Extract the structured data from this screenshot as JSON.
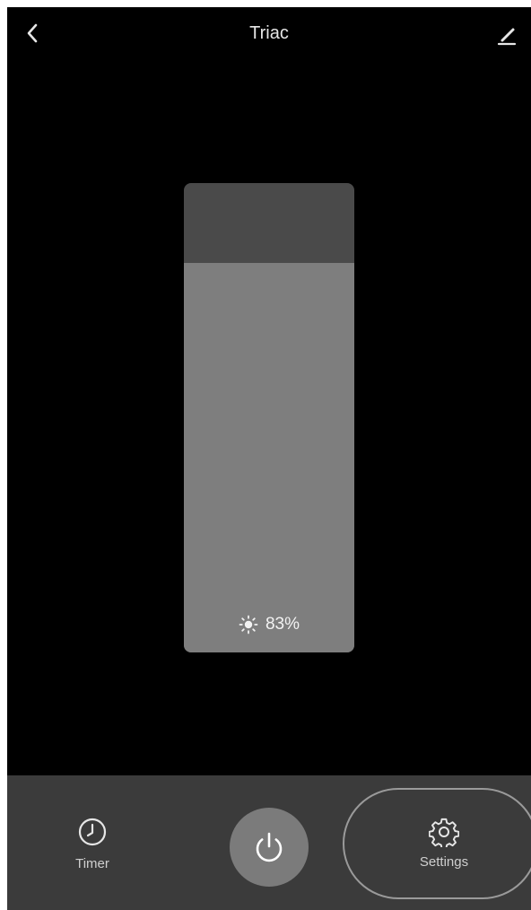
{
  "header": {
    "title": "Triac",
    "back_icon": "chevron-left-icon",
    "edit_icon": "pencil-icon"
  },
  "dimmer": {
    "brightness_percent": 83,
    "brightness_label": "83%",
    "icon": "sun-icon"
  },
  "bottom_bar": {
    "timer": {
      "label": "Timer",
      "icon": "clock-icon"
    },
    "power": {
      "icon": "power-icon"
    },
    "settings": {
      "label": "Settings",
      "icon": "gear-icon"
    }
  },
  "colors": {
    "background": "#000000",
    "slider_track": "#4a4a4a",
    "slider_fill": "#7e7e7e",
    "bottom_bar": "#3b3b3b",
    "power_button": "#7b7b7b"
  }
}
